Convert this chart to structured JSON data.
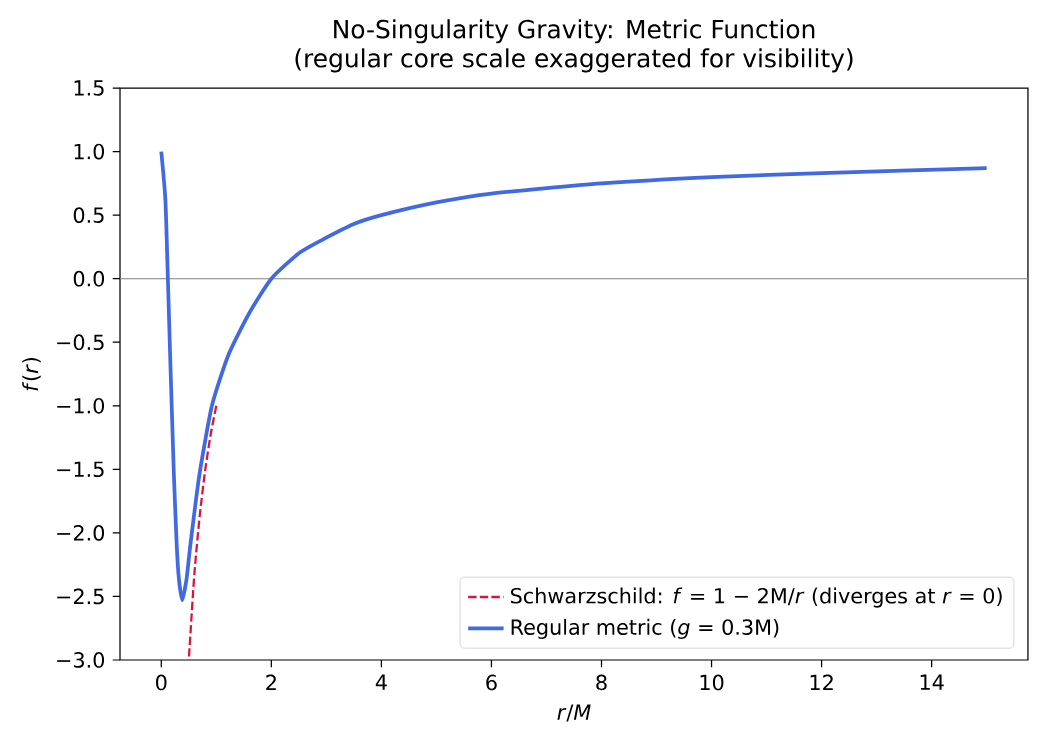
{
  "chart_data": {
    "type": "line",
    "title": "No-Singularity Gravity: Metric Function",
    "subtitle": "(regular core scale exaggerated for visibility)",
    "xlabel": "*r*/*M*",
    "ylabel": "*f*(*r*)",
    "xlim": [
      -0.75,
      15.75
    ],
    "ylim": [
      -3.0,
      1.5
    ],
    "xticks": [
      0,
      2,
      4,
      6,
      8,
      10,
      12,
      14
    ],
    "yticks": [
      {
        "value": -3.0,
        "label": "−3.0"
      },
      {
        "value": -2.5,
        "label": "−2.5"
      },
      {
        "value": -2.0,
        "label": "−2.0"
      },
      {
        "value": -1.5,
        "label": "−1.5"
      },
      {
        "value": -1.0,
        "label": "−1.0"
      },
      {
        "value": -0.5,
        "label": "−0.5"
      },
      {
        "value": 0.0,
        "label": "0.0"
      },
      {
        "value": 0.5,
        "label": "0.5"
      },
      {
        "value": 1.0,
        "label": "1.0"
      },
      {
        "value": 1.5,
        "label": "1.5"
      }
    ],
    "grid": false,
    "legend": "bottom right",
    "ref_lines": [
      {
        "axis": "y",
        "value": 0,
        "color": "#808080"
      }
    ],
    "series": [
      {
        "name": "Schwarzschild: *f* = 1 − 2M/*r* (diverges at *r* = 0)",
        "color": "#dc143c",
        "line_style": "dashed",
        "x": [
          0.5,
          0.6,
          0.7,
          0.8,
          0.9,
          1.0
        ],
        "values": [
          -3.0,
          -2.33,
          -1.86,
          -1.5,
          -1.22,
          -1.0
        ]
      },
      {
        "name": "Regular metric (*g* = 0.3M)",
        "color": "#4169e1",
        "line_style": "solid",
        "x": [
          0,
          0.075,
          0.12,
          0.17,
          0.23,
          0.28,
          0.32,
          0.38,
          0.46,
          0.53,
          0.69,
          0.92,
          1.22,
          1.6,
          2.0,
          2.5,
          2.9,
          3.5,
          4,
          5,
          6,
          8,
          10,
          12,
          15
        ],
        "values": [
          1.0,
          0.62,
          0.0,
          -0.73,
          -1.55,
          -2.09,
          -2.36,
          -2.53,
          -2.36,
          -2.09,
          -1.55,
          -1.0,
          -0.6,
          -0.27,
          0.0,
          0.2,
          0.3,
          0.43,
          0.5,
          0.6,
          0.67,
          0.75,
          0.8,
          0.83,
          0.87
        ]
      }
    ]
  }
}
